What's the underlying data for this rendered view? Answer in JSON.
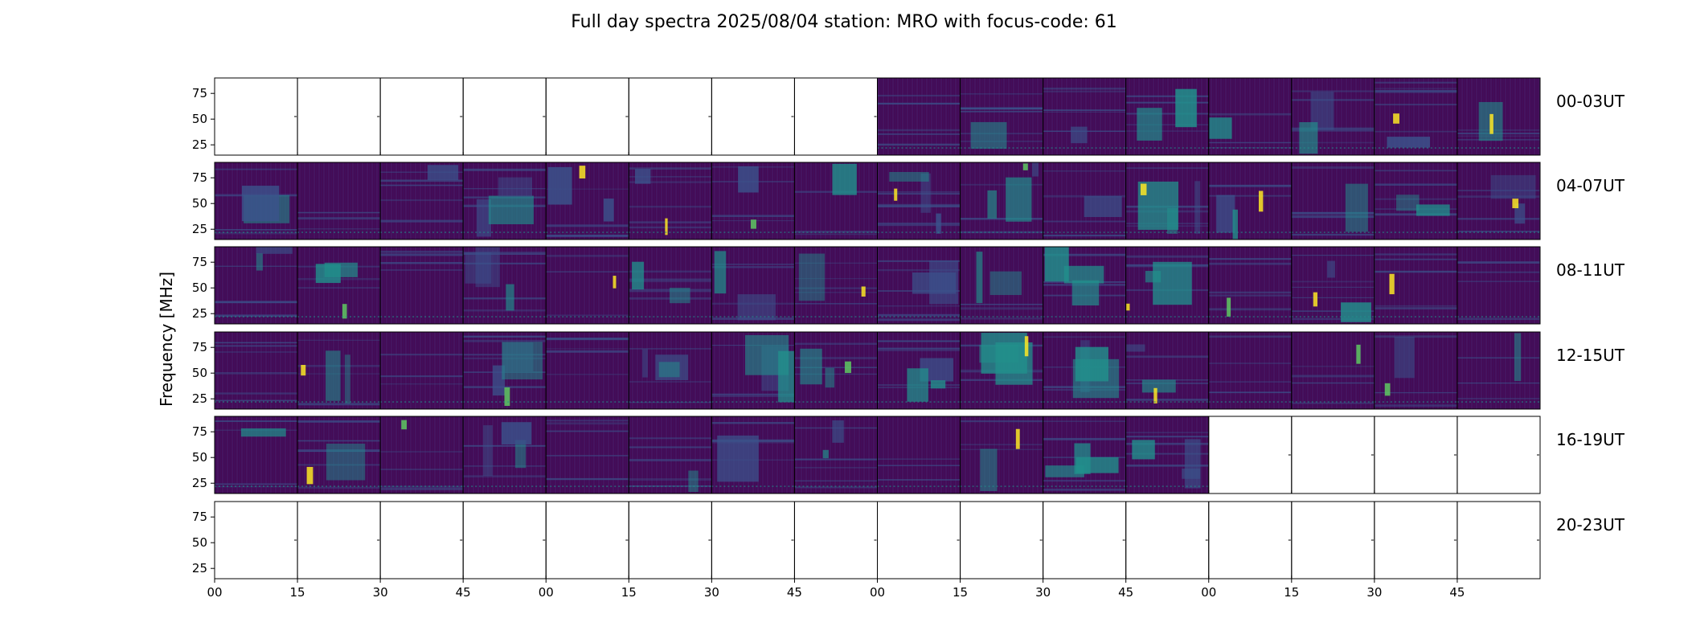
{
  "chart_data": {
    "type": "heatmap",
    "title": "Full day spectra 2025/08/04 station: MRO with focus-code: 61",
    "ylabel": "Frequency [MHz]",
    "xlabel": "",
    "ylim": [
      15,
      90
    ],
    "yticks": [
      25,
      50,
      75
    ],
    "ytick_labels": [
      "25",
      "50",
      "75"
    ],
    "xtick_labels": [
      "00",
      "15",
      "30",
      "45",
      "00",
      "15",
      "30",
      "45",
      "00",
      "15",
      "30",
      "45",
      "00",
      "15",
      "30",
      "45"
    ],
    "rows": [
      {
        "label": "00-03UT",
        "panels_with_data": [
          false,
          false,
          false,
          false,
          false,
          false,
          false,
          false,
          true,
          true,
          true,
          true,
          true,
          true,
          true,
          true
        ]
      },
      {
        "label": "04-07UT",
        "panels_with_data": [
          true,
          true,
          true,
          true,
          true,
          true,
          true,
          true,
          true,
          true,
          true,
          true,
          true,
          true,
          true,
          true
        ]
      },
      {
        "label": "08-11UT",
        "panels_with_data": [
          true,
          true,
          true,
          true,
          true,
          true,
          true,
          true,
          true,
          true,
          true,
          true,
          true,
          true,
          true,
          true
        ]
      },
      {
        "label": "12-15UT",
        "panels_with_data": [
          true,
          true,
          true,
          true,
          true,
          true,
          true,
          true,
          true,
          true,
          true,
          true,
          true,
          true,
          true,
          true
        ]
      },
      {
        "label": "16-19UT",
        "panels_with_data": [
          true,
          true,
          true,
          true,
          true,
          true,
          true,
          true,
          true,
          true,
          true,
          true,
          false,
          false,
          false,
          false
        ]
      },
      {
        "label": "20-23UT",
        "panels_with_data": [
          false,
          false,
          false,
          false,
          false,
          false,
          false,
          false,
          false,
          false,
          false,
          false,
          false,
          false,
          false,
          false
        ]
      }
    ],
    "colormap": "viridis",
    "colors": {
      "background": "#440a55",
      "mid": "#3b528b",
      "teal": "#21918c",
      "green": "#5ec962",
      "yellow": "#fde725",
      "axis": "#000000"
    },
    "grid": false
  }
}
